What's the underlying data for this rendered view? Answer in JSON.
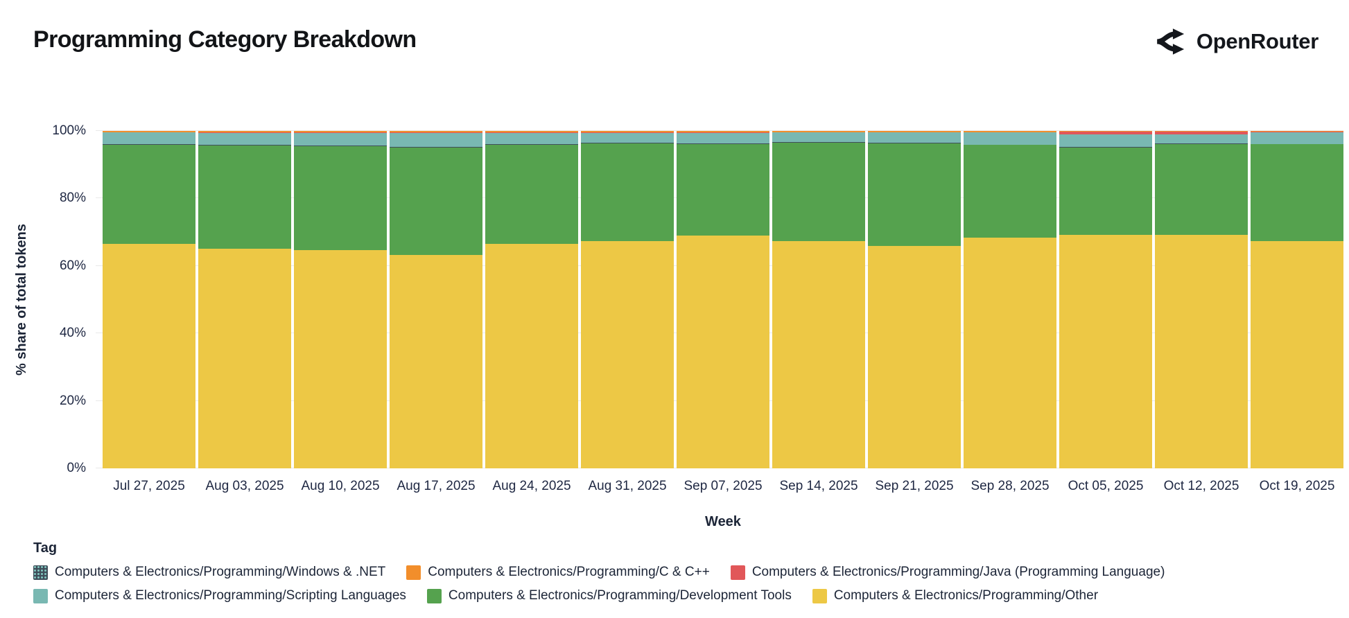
{
  "header": {
    "title": "Programming Category Breakdown",
    "brand": "OpenRouter"
  },
  "chart_data": {
    "type": "bar",
    "stacked": true,
    "unit": "percent",
    "title": "Programming Category Breakdown",
    "xlabel": "Week",
    "ylabel": "% share of total tokens",
    "ylim": [
      0,
      100
    ],
    "grid": true,
    "y_ticks": [
      "0%",
      "20%",
      "40%",
      "60%",
      "80%",
      "100%"
    ],
    "categories": [
      "Jul 27, 2025",
      "Aug 03, 2025",
      "Aug 10, 2025",
      "Aug 17, 2025",
      "Aug 24, 2025",
      "Aug 31, 2025",
      "Sep 07, 2025",
      "Sep 14, 2025",
      "Sep 21, 2025",
      "Sep 28, 2025",
      "Oct 05, 2025",
      "Oct 12, 2025",
      "Oct 19, 2025"
    ],
    "series": [
      {
        "name": "Computers & Electronics/Programming/Other",
        "color": "#edc845",
        "pattern": false,
        "values": [
          66.5,
          65.1,
          64.7,
          63.3,
          66.5,
          67.3,
          69.0,
          67.3,
          65.9,
          68.3,
          69.2,
          69.2,
          67.4
        ]
      },
      {
        "name": "Computers & Electronics/Programming/Development Tools",
        "color": "#55a24e",
        "pattern": false,
        "values": [
          29.4,
          30.6,
          30.8,
          31.8,
          29.4,
          29.0,
          27.2,
          29.3,
          30.4,
          27.5,
          25.8,
          27.0,
          28.6
        ]
      },
      {
        "name": "Computers & Electronics/Programming/Windows & .NET",
        "color": "#3f4e5a",
        "pattern": true,
        "values": [
          0.2,
          0.2,
          0.2,
          0.2,
          0.2,
          0.2,
          0.2,
          0.2,
          0.2,
          0.2,
          0.2,
          0.2,
          0.2
        ]
      },
      {
        "name": "Computers & Electronics/Programming/Scripting Languages",
        "color": "#79b8b2",
        "pattern": false,
        "values": [
          3.4,
          3.5,
          3.7,
          4.1,
          3.3,
          2.9,
          3.0,
          2.7,
          3.0,
          3.5,
          3.7,
          2.6,
          3.4
        ]
      },
      {
        "name": "Computers & Electronics/Programming/Java (Programming Language)",
        "color": "#e15759",
        "pattern": false,
        "values": [
          0.1,
          0.1,
          0.1,
          0.1,
          0.1,
          0.1,
          0.1,
          0.1,
          0.1,
          0.1,
          1.0,
          0.9,
          0.1
        ]
      },
      {
        "name": "Computers & Electronics/Programming/C & C++",
        "color": "#f28e2b",
        "pattern": false,
        "values": [
          0.4,
          0.5,
          0.5,
          0.5,
          0.5,
          0.5,
          0.5,
          0.4,
          0.4,
          0.4,
          0.1,
          0.1,
          0.3
        ]
      }
    ],
    "legend_position": "bottom"
  },
  "legend": {
    "title": "Tag",
    "items": [
      {
        "label": "Computers & Electronics/Programming/Windows & .NET",
        "color": "#3f4e5a",
        "pattern": true
      },
      {
        "label": "Computers & Electronics/Programming/C & C++",
        "color": "#f28e2b",
        "pattern": false
      },
      {
        "label": "Computers & Electronics/Programming/Java (Programming Language)",
        "color": "#e15759",
        "pattern": false
      },
      {
        "label": "Computers & Electronics/Programming/Scripting Languages",
        "color": "#79b8b2",
        "pattern": false
      },
      {
        "label": "Computers & Electronics/Programming/Development Tools",
        "color": "#55a24e",
        "pattern": false
      },
      {
        "label": "Computers & Electronics/Programming/Other",
        "color": "#edc845",
        "pattern": false
      }
    ]
  }
}
